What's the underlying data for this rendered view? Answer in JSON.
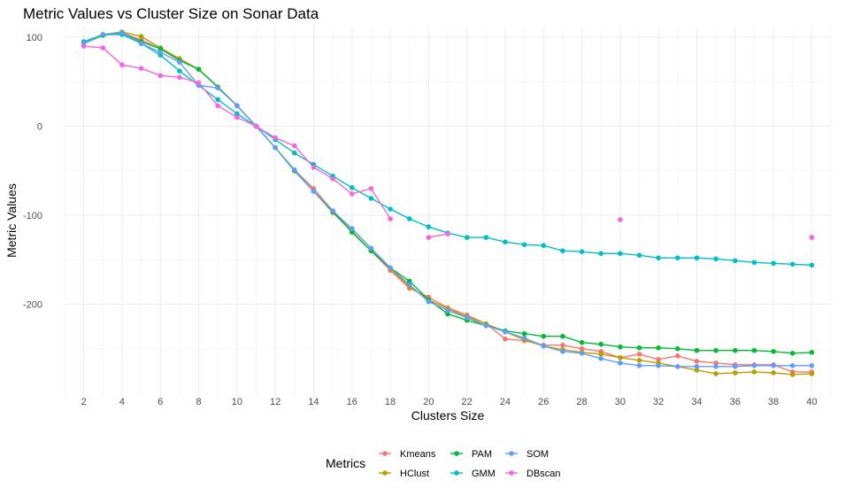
{
  "chart_data": {
    "type": "line",
    "title": "Metric Values vs Cluster Size on Sonar Data",
    "xlabel": "Clusters Size",
    "ylabel": "Metric Values",
    "xlim": [
      1,
      41
    ],
    "ylim": [
      -305,
      112
    ],
    "x_ticks": [
      2,
      4,
      6,
      8,
      10,
      12,
      14,
      16,
      18,
      20,
      22,
      24,
      26,
      28,
      30,
      32,
      34,
      36,
      38,
      40
    ],
    "y_ticks": [
      -200,
      -100,
      0,
      100
    ],
    "y_minor": [
      -250,
      -150,
      -50,
      50
    ],
    "legend": {
      "title": "Metrics",
      "position": "bottom"
    },
    "series": [
      {
        "name": "Kmeans",
        "color": "#F8766D",
        "points": [
          [
            2,
            94
          ],
          [
            3,
            103
          ],
          [
            4,
            105
          ],
          [
            5,
            97
          ],
          [
            6,
            87
          ],
          [
            7,
            75
          ],
          [
            8,
            64
          ],
          [
            9,
            44
          ],
          [
            10,
            23
          ],
          [
            11,
            0
          ],
          [
            12,
            -24
          ],
          [
            13,
            -49
          ],
          [
            14,
            -70
          ],
          [
            15,
            -95
          ],
          [
            16,
            -118
          ],
          [
            17,
            -140
          ],
          [
            18,
            -162
          ],
          [
            19,
            -182
          ],
          [
            20,
            -192
          ],
          [
            21,
            -204
          ],
          [
            22,
            -212
          ],
          [
            23,
            -222
          ],
          [
            24,
            -239
          ],
          [
            25,
            -241
          ],
          [
            26,
            -246
          ],
          [
            27,
            -246
          ],
          [
            28,
            -250
          ],
          [
            29,
            -253
          ],
          [
            30,
            -260
          ],
          [
            31,
            -256
          ],
          [
            32,
            -262
          ],
          [
            33,
            -258
          ],
          [
            34,
            -264
          ],
          [
            35,
            -266
          ],
          [
            36,
            -268
          ],
          [
            37,
            -268
          ],
          [
            38,
            -268
          ],
          [
            39,
            -276
          ],
          [
            40,
            -276
          ]
        ]
      },
      {
        "name": "HClust",
        "color": "#B79F00",
        "points": [
          [
            2,
            94
          ],
          [
            3,
            103
          ],
          [
            4,
            106
          ],
          [
            5,
            101
          ],
          [
            6,
            88
          ],
          [
            7,
            76
          ],
          [
            8,
            64
          ],
          [
            9,
            44
          ],
          [
            10,
            23
          ],
          [
            11,
            0
          ],
          [
            12,
            -24
          ],
          [
            13,
            -50
          ],
          [
            14,
            -73
          ],
          [
            15,
            -97
          ],
          [
            16,
            -118
          ],
          [
            17,
            -140
          ],
          [
            18,
            -160
          ],
          [
            19,
            -180
          ],
          [
            20,
            -195
          ],
          [
            21,
            -205
          ],
          [
            22,
            -214
          ],
          [
            23,
            -222
          ],
          [
            24,
            -231
          ],
          [
            25,
            -240
          ],
          [
            26,
            -247
          ],
          [
            27,
            -251
          ],
          [
            28,
            -254
          ],
          [
            29,
            -256
          ],
          [
            30,
            -260
          ],
          [
            31,
            -263
          ],
          [
            32,
            -266
          ],
          [
            33,
            -270
          ],
          [
            34,
            -274
          ],
          [
            35,
            -278
          ],
          [
            36,
            -277
          ],
          [
            37,
            -276
          ],
          [
            38,
            -277
          ],
          [
            39,
            -279
          ],
          [
            40,
            -278
          ]
        ]
      },
      {
        "name": "PAM",
        "color": "#00BA38",
        "points": [
          [
            2,
            93
          ],
          [
            3,
            102
          ],
          [
            4,
            105
          ],
          [
            5,
            95
          ],
          [
            6,
            87
          ],
          [
            7,
            74
          ],
          [
            8,
            64
          ],
          [
            9,
            44
          ],
          [
            10,
            23
          ],
          [
            11,
            0
          ],
          [
            12,
            -24
          ],
          [
            13,
            -50
          ],
          [
            14,
            -73
          ],
          [
            15,
            -96
          ],
          [
            16,
            -119
          ],
          [
            17,
            -140
          ],
          [
            18,
            -159
          ],
          [
            19,
            -174
          ],
          [
            20,
            -195
          ],
          [
            21,
            -211
          ],
          [
            22,
            -218
          ],
          [
            23,
            -224
          ],
          [
            24,
            -230
          ],
          [
            25,
            -233
          ],
          [
            26,
            -236
          ],
          [
            27,
            -236
          ],
          [
            28,
            -243
          ],
          [
            29,
            -245
          ],
          [
            30,
            -248
          ],
          [
            31,
            -249
          ],
          [
            32,
            -249
          ],
          [
            33,
            -250
          ],
          [
            34,
            -252
          ],
          [
            35,
            -252
          ],
          [
            36,
            -252
          ],
          [
            37,
            -252
          ],
          [
            38,
            -253
          ],
          [
            39,
            -255
          ],
          [
            40,
            -254
          ]
        ]
      },
      {
        "name": "GMM",
        "color": "#00BFC4",
        "points": [
          [
            2,
            95
          ],
          [
            3,
            103
          ],
          [
            4,
            103
          ],
          [
            5,
            93
          ],
          [
            6,
            80
          ],
          [
            7,
            62
          ],
          [
            8,
            46
          ],
          [
            9,
            30
          ],
          [
            10,
            14
          ],
          [
            11,
            0
          ],
          [
            12,
            -15
          ],
          [
            13,
            -30
          ],
          [
            14,
            -43
          ],
          [
            15,
            -56
          ],
          [
            16,
            -69
          ],
          [
            17,
            -81
          ],
          [
            18,
            -93
          ],
          [
            19,
            -104
          ],
          [
            20,
            -113
          ],
          [
            21,
            -120
          ],
          [
            22,
            -125
          ],
          [
            23,
            -125
          ],
          [
            24,
            -130
          ],
          [
            25,
            -133
          ],
          [
            26,
            -134
          ],
          [
            27,
            -140
          ],
          [
            28,
            -141
          ],
          [
            29,
            -143
          ],
          [
            30,
            -143
          ],
          [
            31,
            -145
          ],
          [
            32,
            -148
          ],
          [
            33,
            -148
          ],
          [
            34,
            -148
          ],
          [
            35,
            -149
          ],
          [
            36,
            -151
          ],
          [
            37,
            -153
          ],
          [
            38,
            -154
          ],
          [
            39,
            -155
          ],
          [
            40,
            -156
          ]
        ]
      },
      {
        "name": "SOM",
        "color": "#619CFF",
        "points": [
          [
            2,
            93
          ],
          [
            3,
            103
          ],
          [
            4,
            105
          ],
          [
            5,
            93
          ],
          [
            6,
            83
          ],
          [
            7,
            72
          ],
          [
            8,
            46
          ],
          [
            9,
            43
          ],
          [
            10,
            23
          ],
          [
            11,
            0
          ],
          [
            12,
            -24
          ],
          [
            13,
            -49
          ],
          [
            14,
            -73
          ],
          [
            15,
            -95
          ],
          [
            16,
            -115
          ],
          [
            17,
            -137
          ],
          [
            18,
            -159
          ],
          [
            19,
            -178
          ],
          [
            20,
            -197
          ],
          [
            21,
            -207
          ],
          [
            22,
            -215
          ],
          [
            23,
            -224
          ],
          [
            24,
            -231
          ],
          [
            25,
            -238
          ],
          [
            26,
            -247
          ],
          [
            27,
            -253
          ],
          [
            28,
            -255
          ],
          [
            29,
            -261
          ],
          [
            30,
            -266
          ],
          [
            31,
            -269
          ],
          [
            32,
            -269
          ],
          [
            33,
            -270
          ],
          [
            34,
            -270
          ],
          [
            35,
            -270
          ],
          [
            36,
            -270
          ],
          [
            37,
            -269
          ],
          [
            38,
            -269
          ],
          [
            39,
            -269
          ],
          [
            40,
            -269
          ]
        ]
      },
      {
        "name": "DBscan",
        "color": "#F564E3",
        "points": [
          [
            2,
            90
          ],
          [
            3,
            88
          ],
          [
            4,
            69
          ],
          [
            5,
            65
          ],
          [
            6,
            57
          ],
          [
            7,
            55
          ],
          [
            8,
            49
          ],
          [
            9,
            23
          ],
          [
            10,
            10
          ],
          [
            11,
            0
          ],
          [
            12,
            -13
          ],
          [
            13,
            -22
          ],
          [
            14,
            -46
          ],
          [
            15,
            -59
          ],
          [
            16,
            -76
          ],
          [
            17,
            -70
          ],
          [
            18,
            -104
          ],
          null,
          [
            20,
            -125
          ],
          [
            21,
            -121
          ],
          null,
          [
            30,
            -105
          ],
          null,
          [
            40,
            -125
          ]
        ]
      }
    ]
  }
}
